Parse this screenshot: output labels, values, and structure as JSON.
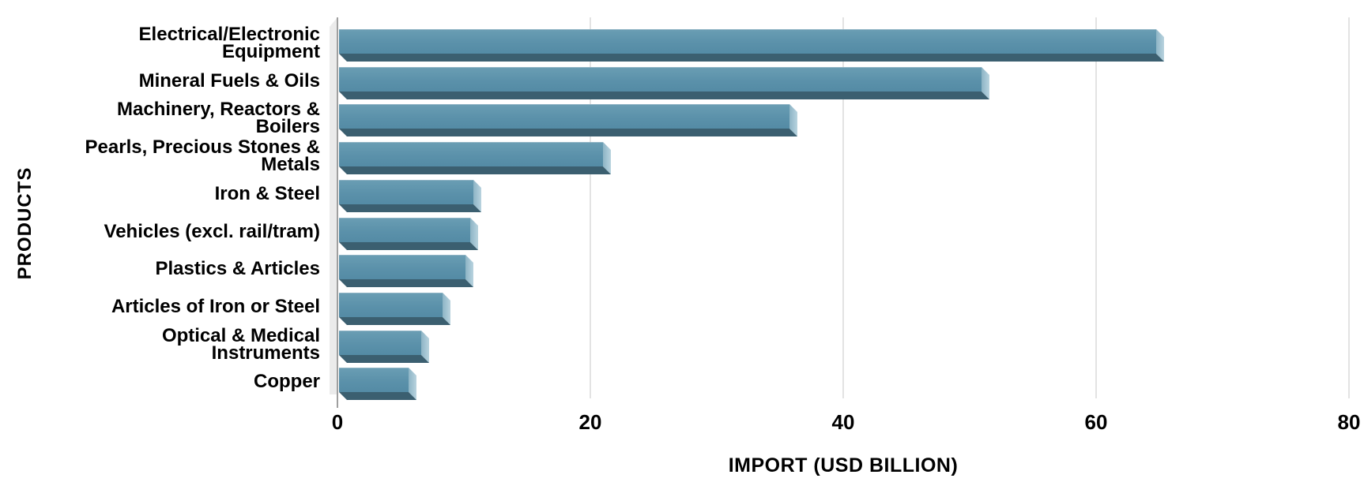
{
  "chart_data": {
    "type": "bar",
    "orientation": "horizontal",
    "title": "",
    "xlabel": "IMPORT (USD BILLION)",
    "ylabel": "PRODUCTS",
    "xlim": [
      0,
      80
    ],
    "xticks": [
      "0",
      "20",
      "40",
      "60",
      "80"
    ],
    "grid": true,
    "legend": "none",
    "style": "3d-beveled-bars",
    "colors": {
      "bar_face": "#5B91AA",
      "bar_end_cap": "#A7C7D5",
      "bar_bottom_shadow": "#3B5F70",
      "gridline": "#E3E3E3",
      "axis_line": "#9F9F9F",
      "text": "#000000",
      "background": "#FFFFFF"
    },
    "categories": [
      "Electrical/Electronic\nEquipment",
      "Mineral Fuels & Oils",
      "Machinery, Reactors &\nBoilers",
      "Pearls, Precious Stones &\nMetals",
      "Iron & Steel",
      "Vehicles (excl. rail/tram)",
      "Plastics & Articles",
      "Articles of Iron or Steel",
      "Optical & Medical\nInstruments",
      "Copper"
    ],
    "values": [
      64.6,
      50.8,
      35.6,
      20.9,
      10.6,
      10.4,
      10.0,
      8.2,
      6.5,
      5.5
    ]
  }
}
